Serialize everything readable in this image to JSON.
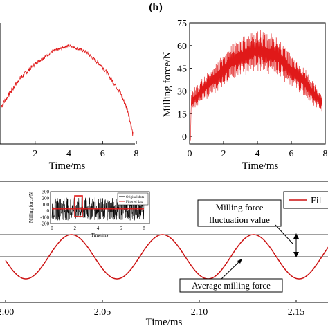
{
  "panel_labels": {
    "b": "(b)"
  },
  "chart_data": [
    {
      "type": "line",
      "xlabel": "Time/ms",
      "ylabel": "",
      "xlim": [
        0,
        8
      ],
      "x_ticks": [
        "2",
        "4",
        "6",
        "8"
      ],
      "grid": false,
      "series": [
        {
          "color": "#e01919",
          "x": [
            0,
            1,
            2,
            3,
            4,
            5,
            6,
            7,
            7.5,
            7.8
          ],
          "y": [
            20,
            37,
            48,
            56,
            60,
            56,
            46,
            30,
            17,
            1
          ]
        }
      ]
    },
    {
      "type": "line",
      "xlabel": "Time/ms",
      "ylabel": "Milling force/N",
      "xlim": [
        0,
        8
      ],
      "ylim": [
        -5,
        75
      ],
      "x_ticks": [
        "0",
        "2",
        "4",
        "6",
        "8"
      ],
      "y_ticks": [
        "0",
        "15",
        "30",
        "45",
        "60",
        "75"
      ],
      "grid": false,
      "series": [
        {
          "color": "#e01919",
          "x": [
            0,
            1,
            2,
            3,
            4,
            5,
            6,
            7,
            7.8
          ],
          "y": [
            22,
            33,
            44,
            53,
            57,
            54,
            44,
            33,
            22
          ]
        }
      ]
    },
    {
      "type": "line",
      "xlabel": "Time/ms",
      "xlim": [
        2.0,
        2.175
      ],
      "x_ticks": [
        "2.00",
        "2.05",
        "2.10",
        "2.15"
      ],
      "grid": false,
      "legend": {
        "placement": "top-right",
        "entries": [
          "Fil"
        ]
      },
      "annotations": {
        "fluctuation": "Milling force fluctuation value",
        "fluctuation_line1": "Milling force",
        "fluctuation_line2": "fluctuation value",
        "average": "Average milling force"
      },
      "series": [
        {
          "color": "#cc1111",
          "kind": "sinusoid",
          "period": 0.047,
          "peak_time": 2.034,
          "mean": 0,
          "amplitude": 1
        }
      ],
      "reference_levels": {
        "max": 1,
        "mean": 0
      },
      "inset": {
        "type": "line",
        "xlabel": "Time/ms",
        "ylabel": "Milling force/N",
        "xlim": [
          0,
          8
        ],
        "ylim": [
          -200,
          300
        ],
        "x_ticks": [
          "0",
          "2",
          "4",
          "6",
          "8"
        ],
        "y_ticks": [
          "300",
          "200",
          "100",
          "0",
          "-100",
          "-200"
        ],
        "legend": [
          "Original data",
          "Filtered data"
        ],
        "highlight_x": [
          2.0,
          2.4
        ],
        "series": [
          {
            "name": "Original data",
            "color": "#000000",
            "amplitude": 180
          },
          {
            "name": "Filtered data",
            "color": "#e01919",
            "mean": 30
          }
        ]
      }
    }
  ]
}
